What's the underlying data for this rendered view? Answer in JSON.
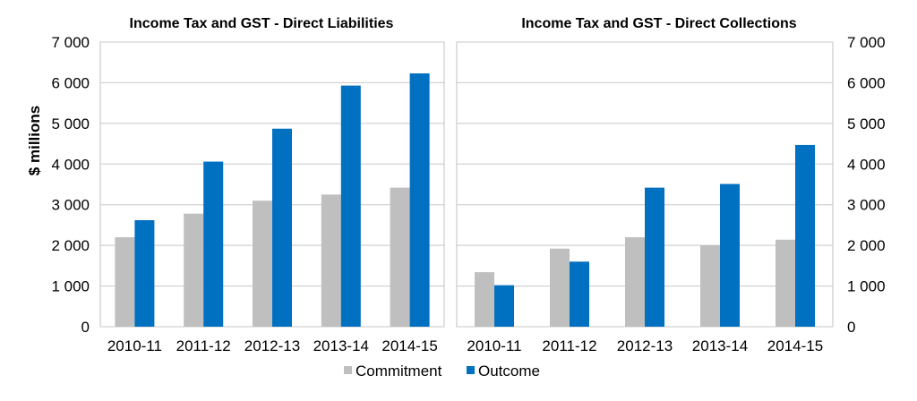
{
  "chart_data": [
    {
      "type": "bar",
      "title": "Income Tax and GST - Direct Liabilities",
      "ylabel": "$ millions",
      "categories": [
        "2010-11",
        "2011-12",
        "2012-13",
        "2013-14",
        "2014-15"
      ],
      "series": [
        {
          "name": "Commitment",
          "color": "#bfbfbf",
          "values": [
            2200,
            2780,
            3100,
            3250,
            3420
          ]
        },
        {
          "name": "Outcome",
          "color": "#0070c0",
          "values": [
            2620,
            4060,
            4870,
            5930,
            6230
          ]
        }
      ],
      "ylim": [
        0,
        7000
      ],
      "yticks": [
        0,
        1000,
        2000,
        3000,
        4000,
        5000,
        6000,
        7000
      ],
      "ytick_labels": [
        "0",
        "1 000",
        "2 000",
        "3 000",
        "4 000",
        "5 000",
        "6 000",
        "7 000"
      ],
      "y_axis_side": "left",
      "grid": true,
      "legend": "bottom"
    },
    {
      "type": "bar",
      "title": "Income Tax and GST - Direct Collections",
      "ylabel": "",
      "categories": [
        "2010-11",
        "2011-12",
        "2012-13",
        "2013-14",
        "2014-15"
      ],
      "series": [
        {
          "name": "Commitment",
          "color": "#bfbfbf",
          "values": [
            1340,
            1920,
            2200,
            2000,
            2140
          ]
        },
        {
          "name": "Outcome",
          "color": "#0070c0",
          "values": [
            1020,
            1600,
            3420,
            3510,
            4470
          ]
        }
      ],
      "ylim": [
        0,
        7000
      ],
      "yticks": [
        0,
        1000,
        2000,
        3000,
        4000,
        5000,
        6000,
        7000
      ],
      "ytick_labels": [
        "0",
        "1 000",
        "2 000",
        "3 000",
        "4 000",
        "5 000",
        "6 000",
        "7 000"
      ],
      "y_axis_side": "right",
      "grid": true,
      "legend": "bottom"
    }
  ],
  "legend": {
    "items": [
      {
        "label": "Commitment",
        "color": "#bfbfbf"
      },
      {
        "label": "Outcome",
        "color": "#0070c0"
      }
    ]
  }
}
